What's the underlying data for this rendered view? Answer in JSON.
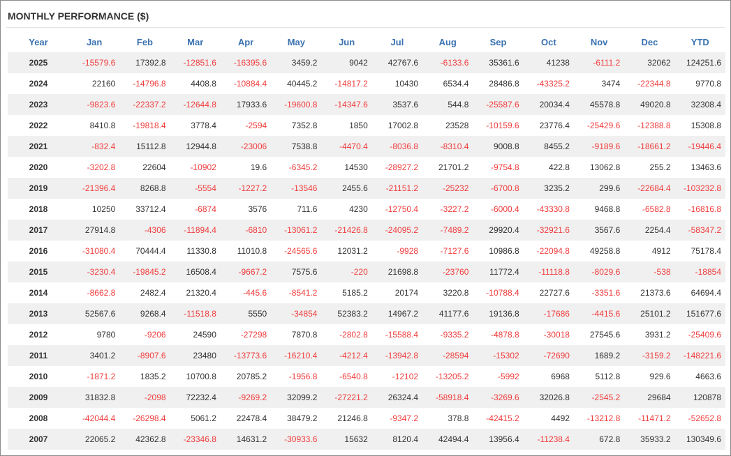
{
  "title": "MONTHLY PERFORMANCE ($)",
  "table": {
    "header": [
      "Year",
      "Jan",
      "Feb",
      "Mar",
      "Apr",
      "May",
      "Jun",
      "Jul",
      "Aug",
      "Sep",
      "Oct",
      "Nov",
      "Dec",
      "YTD"
    ],
    "rows": [
      [
        2025,
        -15579.6,
        17392.8,
        -12851.6,
        -16395.6,
        3459.2,
        9042,
        42767.6,
        -6133.6,
        35361.6,
        41238,
        -6111.2,
        32062,
        124251.6
      ],
      [
        2024,
        22160,
        -14796.8,
        4408.8,
        -10884.4,
        40445.2,
        -14817.2,
        10430,
        6534.4,
        28486.8,
        -43325.2,
        3474,
        -22344.8,
        9770.8
      ],
      [
        2023,
        -9823.6,
        -22337.2,
        -12644.8,
        17933.6,
        -19600.8,
        -14347.6,
        3537.6,
        544.8,
        -25587.6,
        20034.4,
        45578.8,
        49020.8,
        32308.4
      ],
      [
        2022,
        8410.8,
        -19818.4,
        3778.4,
        -2594,
        7352.8,
        1850,
        17002.8,
        23528,
        -10159.6,
        23776.4,
        -25429.6,
        -12388.8,
        15308.8
      ],
      [
        2021,
        -832.4,
        15112.8,
        12944.8,
        -23006,
        7538.8,
        -4470.4,
        -8036.8,
        -8310.4,
        9008.8,
        8455.2,
        -9189.6,
        -18661.2,
        -19446.4
      ],
      [
        2020,
        -3202.8,
        22604,
        -10902,
        19.6,
        -6345.2,
        14530,
        -28927.2,
        21701.2,
        -9754.8,
        422.8,
        13062.8,
        255.2,
        13463.6
      ],
      [
        2019,
        -21396.4,
        8268.8,
        -5554,
        -1227.2,
        -13546,
        2455.6,
        -21151.2,
        -25232,
        -6700.8,
        3235.2,
        299.6,
        -22684.4,
        -103232.8
      ],
      [
        2018,
        10250,
        33712.4,
        -6874,
        3576,
        711.6,
        4230,
        -12750.4,
        -3227.2,
        -6000.4,
        -43330.8,
        9468.8,
        -6582.8,
        -16816.8
      ],
      [
        2017,
        27914.8,
        -4306,
        -11894.4,
        -6810,
        -13061.2,
        -21426.8,
        -24095.2,
        -7489.2,
        29920.4,
        -32921.6,
        3567.6,
        2254.4,
        -58347.2
      ],
      [
        2016,
        -31080.4,
        70444.4,
        11330.8,
        11010.8,
        -24565.6,
        12031.2,
        -9928,
        -7127.6,
        10986.8,
        -22094.8,
        49258.8,
        4912,
        75178.4
      ],
      [
        2015,
        -3230.4,
        -19845.2,
        16508.4,
        -9667.2,
        7575.6,
        -220,
        21698.8,
        -23760,
        11772.4,
        -11118.8,
        -8029.6,
        -538,
        -18854
      ],
      [
        2014,
        -8662.8,
        2482.4,
        21320.4,
        -445.6,
        -8541.2,
        5185.2,
        20174,
        3220.8,
        -10788.4,
        22727.6,
        -3351.6,
        21373.6,
        64694.4
      ],
      [
        2013,
        52567.6,
        9268.4,
        -11518.8,
        5550,
        -34854,
        52383.2,
        14967.2,
        41177.6,
        19136.8,
        -17686,
        -4415.6,
        25101.2,
        151677.6
      ],
      [
        2012,
        9780,
        -9206,
        24590,
        -27298,
        7870.8,
        -2802.8,
        -15588.4,
        -9335.2,
        -4878.8,
        -30018,
        27545.6,
        3931.2,
        -25409.6
      ],
      [
        2011,
        3401.2,
        -8907.6,
        23480,
        -13773.6,
        -16210.4,
        -4212.4,
        -13942.8,
        -28594,
        -15302,
        -72690,
        1689.2,
        -3159.2,
        -148221.6
      ],
      [
        2010,
        -1871.2,
        1835.2,
        10700.8,
        20785.2,
        -1956.8,
        -6540.8,
        -12102,
        -13205.2,
        -5992,
        6968,
        5112.8,
        929.6,
        4663.6
      ],
      [
        2009,
        31832.8,
        -2098,
        72232.4,
        -9269.2,
        32099.2,
        -27221.2,
        26324.4,
        -58918.4,
        -3269.6,
        32026.8,
        -2545.2,
        29684,
        120878
      ],
      [
        2008,
        -42044.4,
        -26298.4,
        5061.2,
        22478.4,
        38479.2,
        21246.8,
        -9347.2,
        378.8,
        -42415.2,
        4492,
        -13212.8,
        -11471.2,
        -52652.8
      ],
      [
        2007,
        22065.2,
        42362.8,
        -23346.8,
        14631.2,
        -30933.6,
        15632,
        8120.4,
        42494.4,
        13956.4,
        -11238.4,
        672.8,
        35933.2,
        130349.6
      ]
    ]
  }
}
